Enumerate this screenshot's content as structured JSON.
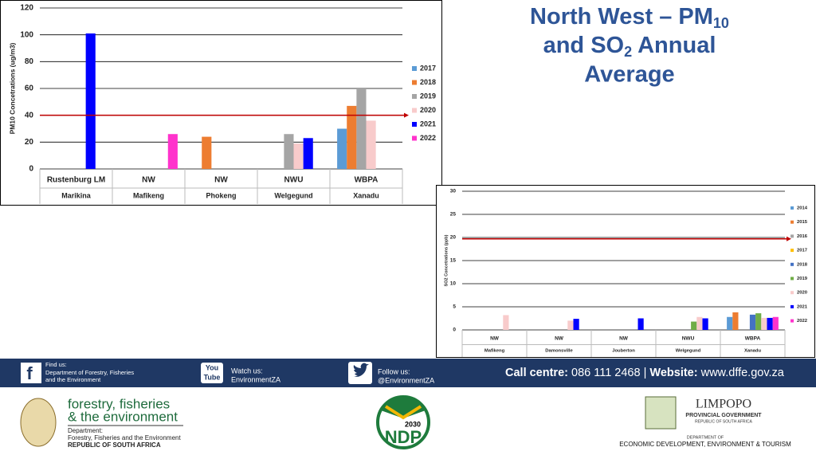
{
  "slide_title": {
    "line1": "North West – PM",
    "line1_sub": "10",
    "line2": "and SO",
    "line2_sub": "2",
    "line2_end": " Annual",
    "line3": "Average"
  },
  "chart_data": [
    {
      "type": "bar",
      "ylabel": "PM10 Concetrations (ug/m3)",
      "categories": [
        [
          "Rustenburg LM",
          "Marikina"
        ],
        [
          "NW",
          "Mafikeng"
        ],
        [
          "NW",
          "Phokeng"
        ],
        [
          "NWU",
          "Welgegund"
        ],
        [
          "WBPA",
          "Xanadu"
        ]
      ],
      "series": [
        {
          "name": "2017",
          "color": "#5b9bd5",
          "values": [
            null,
            null,
            null,
            null,
            30
          ]
        },
        {
          "name": "2018",
          "color": "#ed7d31",
          "values": [
            null,
            null,
            24,
            null,
            47
          ]
        },
        {
          "name": "2019",
          "color": "#a5a5a5",
          "values": [
            null,
            null,
            null,
            26,
            60
          ]
        },
        {
          "name": "2020",
          "color": "#f8cbcb",
          "values": [
            null,
            null,
            null,
            19,
            36
          ]
        },
        {
          "name": "2021",
          "color": "#0000ff",
          "values": [
            101,
            null,
            null,
            23,
            null
          ]
        },
        {
          "name": "2022",
          "color": "#ff33cc",
          "values": [
            null,
            26,
            null,
            null,
            null
          ]
        }
      ],
      "ylim": [
        0,
        120
      ],
      "yticks": [
        0,
        20,
        40,
        60,
        80,
        100,
        120
      ],
      "grid": true,
      "reference_line": {
        "value": 40,
        "color": "#c00000"
      }
    },
    {
      "type": "bar",
      "ylabel": "SO2 Concetrations (ppb)",
      "categories": [
        [
          "NW",
          "Mafikeng"
        ],
        [
          "NW",
          "Damonsville"
        ],
        [
          "NW",
          "Jouberton"
        ],
        [
          "NWU",
          "Welgegund"
        ],
        [
          "WBPA",
          "Xanadu"
        ]
      ],
      "series": [
        {
          "name": "2014",
          "color": "#5b9bd5",
          "values": [
            null,
            null,
            null,
            null,
            2.8
          ]
        },
        {
          "name": "2015",
          "color": "#ed7d31",
          "values": [
            null,
            null,
            null,
            null,
            3.8
          ]
        },
        {
          "name": "2016",
          "color": "#a5a5a5",
          "values": [
            null,
            null,
            null,
            null,
            null
          ]
        },
        {
          "name": "2017",
          "color": "#ffc000",
          "values": [
            null,
            null,
            null,
            null,
            null
          ]
        },
        {
          "name": "2018",
          "color": "#4472c4",
          "values": [
            null,
            null,
            null,
            null,
            3.3
          ]
        },
        {
          "name": "2019",
          "color": "#70ad47",
          "values": [
            null,
            null,
            null,
            1.8,
            3.6
          ]
        },
        {
          "name": "2020",
          "color": "#f8cbcb",
          "values": [
            3.2,
            2.0,
            null,
            2.8,
            2.6
          ]
        },
        {
          "name": "2021",
          "color": "#0000ff",
          "values": [
            null,
            2.4,
            2.5,
            2.5,
            2.6
          ]
        },
        {
          "name": "2022",
          "color": "#ff33cc",
          "values": [
            null,
            null,
            null,
            null,
            2.8
          ]
        }
      ],
      "ylim": [
        0,
        30
      ],
      "yticks": [
        0,
        5,
        10,
        15,
        20,
        25,
        30
      ],
      "grid": true,
      "reference_line": {
        "value": 19.7,
        "color": "#c00000"
      }
    }
  ],
  "footer": {
    "find": "Find us:",
    "find_text1": "Department of Forestry, Fisheries",
    "find_text2": "and the Environment",
    "youtube1": "You",
    "youtube2": "Tube",
    "watch": "Watch us:",
    "watch_text": "EnvironmentZA",
    "follow": "Follow us:",
    "follow_text": "@EnvironmentZA",
    "call_label": "Call centre:",
    "call_number": "086 111 2468",
    "separator": "|",
    "web_label": "Website:",
    "web_url": "www.dffe.gov.za"
  },
  "logos": {
    "dffe1": "forestry, fisheries",
    "dffe2": "& the environment",
    "dept": "Department:",
    "dept_name": "Forestry, Fisheries and the Environment",
    "rsa": "REPUBLIC OF SOUTH AFRICA",
    "ndp_year": "2030",
    "ndp": "NDP",
    "limpopo": "LIMPOPO",
    "prov": "PROVINCIAL GOVERNMENT",
    "prov_rsa": "REPUBLIC OF SOUTH AFRICA",
    "dept_of": "DEPARTMENT OF",
    "ledet": "ECONOMIC DEVELOPMENT, ENVIRONMENT & TOURISM"
  }
}
